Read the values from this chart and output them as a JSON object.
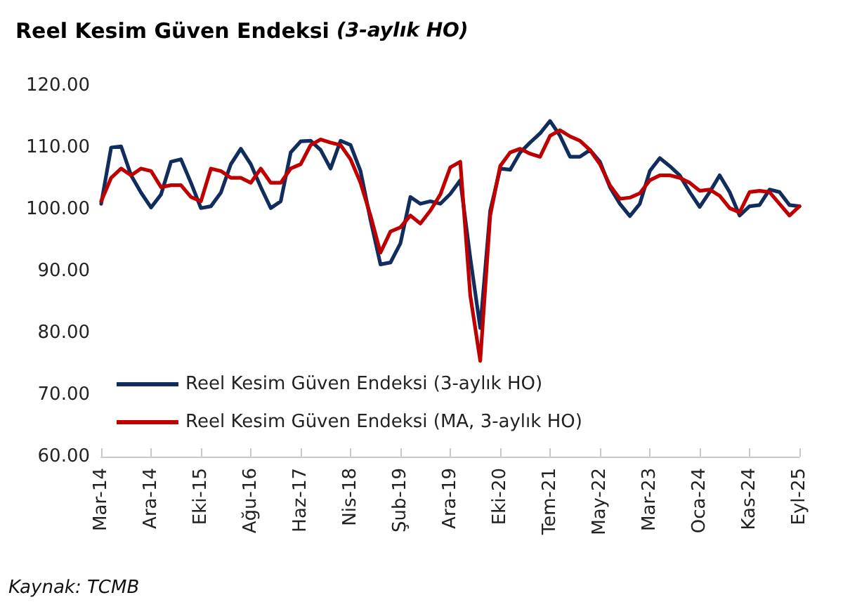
{
  "chart_data": {
    "type": "line",
    "title": "Reel Kesim Güven Endeksi",
    "subtitle": "(3-aylık HO)",
    "categories": [
      "Mar-14",
      null,
      null,
      null,
      null,
      "Ara-14",
      null,
      null,
      null,
      null,
      "Eki-15",
      null,
      null,
      null,
      null,
      "Ağu-16",
      null,
      null,
      null,
      null,
      "Haz-17",
      null,
      null,
      null,
      null,
      "Nis-18",
      null,
      null,
      null,
      null,
      "Şub-19",
      null,
      null,
      null,
      null,
      "Ara-19",
      null,
      null,
      null,
      null,
      "Eki-20",
      null,
      null,
      null,
      null,
      "Tem-21",
      null,
      null,
      null,
      null,
      "May-22",
      null,
      null,
      null,
      null,
      "Mar-23",
      null,
      null,
      null,
      null,
      "Oca-24",
      null,
      null,
      null,
      null,
      "Kas-24",
      null,
      null,
      null,
      null,
      "Eyl-25"
    ],
    "series": [
      {
        "name": "Reel Kesim Güven Endeksi (3-aylık HO)",
        "color": "#112d5e",
        "values": [
          100.9,
          110.0,
          110.2,
          105.5,
          102.7,
          100.3,
          102.4,
          107.7,
          108.1,
          104.3,
          100.2,
          100.5,
          102.7,
          107.3,
          109.8,
          107.3,
          103.6,
          100.2,
          101.3,
          109.2,
          111.0,
          111.1,
          109.6,
          106.6,
          111.1,
          110.4,
          106.2,
          98.3,
          91.1,
          91.4,
          94.5,
          102.0,
          100.9,
          101.3,
          100.9,
          102.5,
          104.7,
          92.2,
          80.8,
          99.8,
          106.6,
          106.4,
          109.2,
          110.8,
          112.3,
          114.3,
          111.9,
          108.5,
          108.5,
          109.6,
          107.7,
          103.6,
          100.9,
          98.9,
          100.9,
          106.2,
          108.3,
          107.0,
          105.5,
          102.8,
          100.4,
          102.8,
          105.5,
          102.8,
          99.0,
          100.5,
          100.7,
          103.2,
          102.8,
          100.7,
          100.5
        ]
      },
      {
        "name": "Reel Kesim Güven Endeksi (MA, 3-aylık HO)",
        "color": "#c00000",
        "values": [
          101.3,
          105.1,
          106.6,
          105.5,
          106.6,
          106.2,
          103.6,
          103.9,
          103.9,
          102.0,
          101.3,
          106.6,
          106.2,
          105.1,
          105.1,
          104.3,
          106.6,
          104.3,
          104.3,
          106.6,
          107.3,
          110.4,
          111.3,
          110.8,
          110.4,
          108.1,
          104.3,
          99.0,
          93.0,
          96.4,
          97.1,
          99.0,
          97.7,
          99.8,
          102.4,
          106.8,
          107.7,
          86.1,
          75.5,
          99.0,
          107.0,
          109.2,
          109.8,
          109.0,
          108.5,
          111.9,
          112.8,
          111.8,
          111.1,
          109.6,
          107.3,
          103.9,
          101.7,
          101.9,
          102.6,
          104.7,
          105.5,
          105.5,
          105.1,
          104.3,
          103.0,
          103.2,
          102.2,
          100.2,
          99.5,
          102.8,
          103.0,
          102.8,
          100.9,
          99.0,
          100.5
        ]
      }
    ],
    "ylim": [
      60,
      120
    ],
    "yticks": [
      {
        "value": 60,
        "label": "60.00"
      },
      {
        "value": 70,
        "label": "70.00"
      },
      {
        "value": 80,
        "label": "80.00"
      },
      {
        "value": 90,
        "label": "90.00"
      },
      {
        "value": 100,
        "label": "100.00"
      },
      {
        "value": 110,
        "label": "110.00"
      },
      {
        "value": 120,
        "label": "120.00"
      }
    ],
    "grid": false,
    "legend": "bottom left",
    "marker": "none",
    "line_style": "solid",
    "annotations": [
      "Kaynak: TCMB"
    ]
  }
}
